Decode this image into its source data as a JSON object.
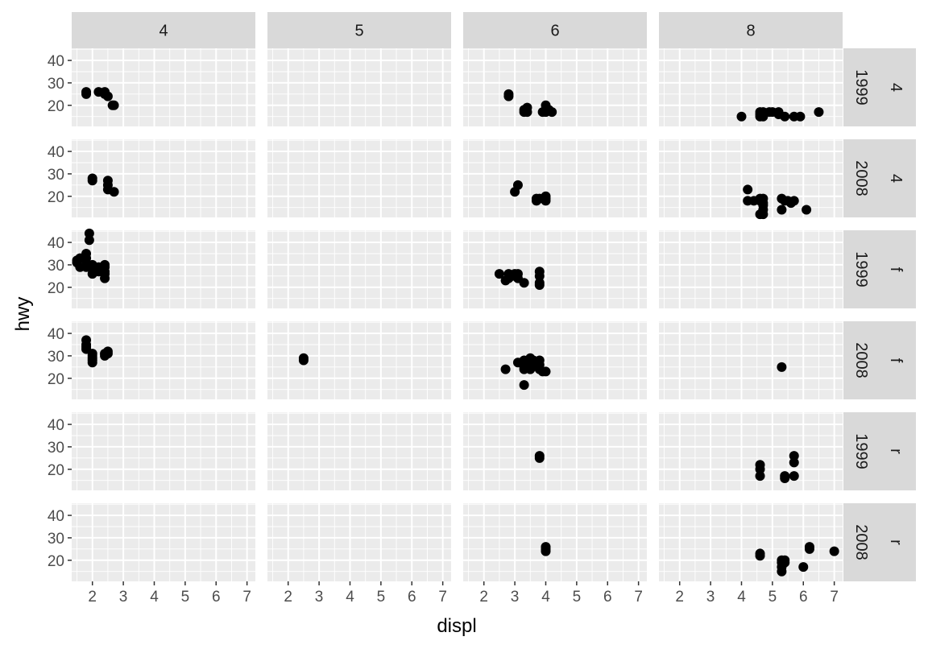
{
  "chart_data": {
    "type": "scatter",
    "facet_type": "grid",
    "xlabel": "displ",
    "ylabel": "hwy",
    "col_var_levels": [
      "4",
      "5",
      "6",
      "8"
    ],
    "row_levels": [
      {
        "year": "1999",
        "drv": "4"
      },
      {
        "year": "2008",
        "drv": "4"
      },
      {
        "year": "1999",
        "drv": "f"
      },
      {
        "year": "2008",
        "drv": "f"
      },
      {
        "year": "1999",
        "drv": "r"
      },
      {
        "year": "2008",
        "drv": "r"
      }
    ],
    "xlim": [
      1.33,
      7.27
    ],
    "ylim": [
      10.6,
      45.4
    ],
    "x_ticks": [
      2,
      3,
      4,
      5,
      6,
      7
    ],
    "y_ticks": [
      20,
      30,
      40
    ],
    "grid": true,
    "point_color": "#000000",
    "panel_background": "#ebebeb",
    "strip_background": "#d9d9d9",
    "panels": [
      {
        "row": 0,
        "col": 0,
        "points": [
          [
            1.8,
            26
          ],
          [
            1.8,
            25
          ],
          [
            2.2,
            26
          ],
          [
            2.4,
            26
          ],
          [
            2.4,
            25
          ],
          [
            2.5,
            24
          ],
          [
            2.7,
            20
          ],
          [
            2.65,
            20
          ]
        ]
      },
      {
        "row": 0,
        "col": 1,
        "points": []
      },
      {
        "row": 0,
        "col": 2,
        "points": [
          [
            2.8,
            25
          ],
          [
            2.8,
            24
          ],
          [
            3.3,
            17
          ],
          [
            3.4,
            19
          ],
          [
            3.3,
            18
          ],
          [
            3.4,
            17
          ],
          [
            3.9,
            17
          ],
          [
            4.0,
            20
          ],
          [
            4.0,
            18
          ],
          [
            4.0,
            17
          ],
          [
            4.1,
            18
          ],
          [
            4.2,
            17
          ]
        ]
      },
      {
        "row": 0,
        "col": 3,
        "points": [
          [
            4.0,
            15
          ],
          [
            4.6,
            15
          ],
          [
            4.6,
            16
          ],
          [
            4.6,
            17
          ],
          [
            4.7,
            17
          ],
          [
            4.7,
            16
          ],
          [
            4.7,
            15
          ],
          [
            4.9,
            17
          ],
          [
            5.0,
            17
          ],
          [
            5.2,
            17
          ],
          [
            5.2,
            16
          ],
          [
            5.4,
            15
          ],
          [
            5.7,
            15
          ],
          [
            5.9,
            15
          ],
          [
            6.5,
            17
          ]
        ]
      },
      {
        "row": 1,
        "col": 0,
        "points": [
          [
            2.0,
            28
          ],
          [
            2.0,
            27
          ],
          [
            2.5,
            27
          ],
          [
            2.5,
            25
          ],
          [
            2.5,
            23
          ],
          [
            2.7,
            22
          ]
        ]
      },
      {
        "row": 1,
        "col": 1,
        "points": []
      },
      {
        "row": 1,
        "col": 2,
        "points": [
          [
            3.0,
            22
          ],
          [
            3.1,
            25
          ],
          [
            3.7,
            19
          ],
          [
            3.7,
            18
          ],
          [
            3.8,
            19
          ],
          [
            4.0,
            20
          ],
          [
            4.0,
            19
          ],
          [
            4.0,
            18
          ]
        ]
      },
      {
        "row": 1,
        "col": 3,
        "points": [
          [
            4.2,
            23
          ],
          [
            4.2,
            18
          ],
          [
            4.4,
            18
          ],
          [
            4.6,
            19
          ],
          [
            4.6,
            18
          ],
          [
            4.7,
            19
          ],
          [
            4.7,
            17
          ],
          [
            4.7,
            16
          ],
          [
            4.7,
            14
          ],
          [
            4.7,
            12
          ],
          [
            4.6,
            12
          ],
          [
            5.3,
            19
          ],
          [
            5.3,
            14
          ],
          [
            5.4,
            18
          ],
          [
            5.5,
            18
          ],
          [
            5.6,
            17
          ],
          [
            5.7,
            18
          ],
          [
            6.1,
            14
          ]
        ]
      },
      {
        "row": 2,
        "col": 0,
        "points": [
          [
            1.5,
            31
          ],
          [
            1.5,
            32
          ],
          [
            1.6,
            33
          ],
          [
            1.6,
            29
          ],
          [
            1.8,
            35
          ],
          [
            1.8,
            33
          ],
          [
            1.8,
            30
          ],
          [
            1.8,
            29
          ],
          [
            1.9,
            44
          ],
          [
            1.9,
            41
          ],
          [
            2.0,
            30
          ],
          [
            2.0,
            29
          ],
          [
            2.0,
            26
          ],
          [
            2.0,
            28
          ],
          [
            2.2,
            27
          ],
          [
            2.2,
            28
          ],
          [
            2.2,
            29
          ],
          [
            2.4,
            30
          ],
          [
            2.4,
            29
          ],
          [
            2.4,
            27
          ],
          [
            2.4,
            26
          ],
          [
            2.4,
            24
          ],
          [
            2.3,
            28
          ]
        ]
      },
      {
        "row": 2,
        "col": 1,
        "points": []
      },
      {
        "row": 2,
        "col": 2,
        "points": [
          [
            2.5,
            26
          ],
          [
            2.8,
            26
          ],
          [
            2.8,
            24
          ],
          [
            2.7,
            23
          ],
          [
            2.9,
            25
          ],
          [
            3.0,
            26
          ],
          [
            3.1,
            26
          ],
          [
            3.1,
            24
          ],
          [
            3.3,
            22
          ],
          [
            3.8,
            27
          ],
          [
            3.8,
            25
          ],
          [
            3.8,
            22
          ],
          [
            3.8,
            21
          ]
        ]
      },
      {
        "row": 2,
        "col": 3,
        "points": []
      },
      {
        "row": 3,
        "col": 0,
        "points": [
          [
            1.8,
            37
          ],
          [
            1.8,
            35
          ],
          [
            1.8,
            34
          ],
          [
            1.8,
            33
          ],
          [
            2.0,
            31
          ],
          [
            2.0,
            30
          ],
          [
            2.0,
            29
          ],
          [
            2.0,
            28
          ],
          [
            2.0,
            27
          ],
          [
            2.4,
            30
          ],
          [
            2.4,
            31
          ],
          [
            2.5,
            31
          ],
          [
            2.5,
            32
          ]
        ]
      },
      {
        "row": 3,
        "col": 1,
        "points": [
          [
            2.5,
            29
          ],
          [
            2.5,
            28
          ]
        ]
      },
      {
        "row": 3,
        "col": 2,
        "points": [
          [
            2.7,
            24
          ],
          [
            3.1,
            27
          ],
          [
            3.3,
            28
          ],
          [
            3.3,
            26
          ],
          [
            3.3,
            25
          ],
          [
            3.3,
            24
          ],
          [
            3.3,
            17
          ],
          [
            3.4,
            27
          ],
          [
            3.4,
            25
          ],
          [
            3.5,
            29
          ],
          [
            3.5,
            27
          ],
          [
            3.5,
            26
          ],
          [
            3.5,
            24
          ],
          [
            3.6,
            28
          ],
          [
            3.6,
            26
          ],
          [
            3.8,
            28
          ],
          [
            3.8,
            26
          ],
          [
            3.8,
            24
          ],
          [
            3.9,
            23
          ],
          [
            4.0,
            23
          ]
        ]
      },
      {
        "row": 3,
        "col": 3,
        "points": [
          [
            5.3,
            25
          ]
        ]
      },
      {
        "row": 4,
        "col": 0,
        "points": []
      },
      {
        "row": 4,
        "col": 1,
        "points": []
      },
      {
        "row": 4,
        "col": 2,
        "points": [
          [
            3.8,
            26
          ],
          [
            3.8,
            25
          ]
        ]
      },
      {
        "row": 4,
        "col": 3,
        "points": [
          [
            4.6,
            22
          ],
          [
            4.6,
            20
          ],
          [
            4.6,
            17
          ],
          [
            5.4,
            17
          ],
          [
            5.4,
            16
          ],
          [
            5.7,
            26
          ],
          [
            5.7,
            23
          ],
          [
            5.7,
            17
          ]
        ]
      },
      {
        "row": 5,
        "col": 0,
        "points": []
      },
      {
        "row": 5,
        "col": 1,
        "points": []
      },
      {
        "row": 5,
        "col": 2,
        "points": [
          [
            4.0,
            26
          ],
          [
            4.0,
            24
          ],
          [
            4.0,
            25
          ]
        ]
      },
      {
        "row": 5,
        "col": 3,
        "points": [
          [
            4.6,
            23
          ],
          [
            4.6,
            22
          ],
          [
            5.3,
            20
          ],
          [
            5.3,
            19
          ],
          [
            5.3,
            17
          ],
          [
            5.3,
            15
          ],
          [
            5.4,
            20
          ],
          [
            5.4,
            19
          ],
          [
            6.0,
            17
          ],
          [
            6.2,
            26
          ],
          [
            6.2,
            25
          ],
          [
            7.0,
            24
          ]
        ]
      }
    ]
  }
}
